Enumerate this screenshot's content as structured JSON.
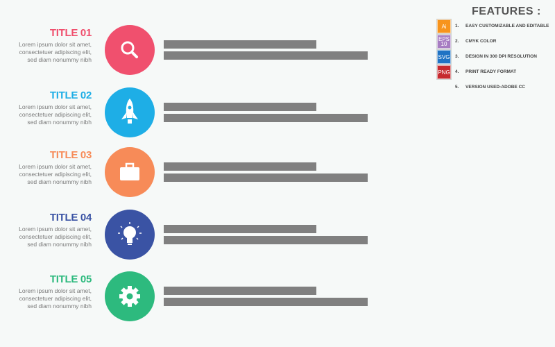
{
  "colors": {
    "bar": "#808080"
  },
  "items": [
    {
      "title": "TITLE 01",
      "text": "Lorem ipsum dolor sit amet, consectetuer adipiscing elit, sed diam nonummy nibh",
      "color": "#f0506e",
      "icon": "search-icon"
    },
    {
      "title": "TITLE 02",
      "text": "Lorem ipsum dolor sit amet, consectetuer adipiscing elit, sed diam nonummy nibh",
      "color": "#1eaee6",
      "icon": "rocket-icon"
    },
    {
      "title": "TITLE 03",
      "text": "Lorem ipsum dolor sit amet, consectetuer adipiscing elit, sed diam nonummy nibh",
      "color": "#f78b58",
      "icon": "briefcase-icon"
    },
    {
      "title": "TITLE 04",
      "text": "Lorem ipsum dolor sit amet, consectetuer adipiscing elit, sed diam nonummy nibh",
      "color": "#3a53a4",
      "icon": "lightbulb-icon"
    },
    {
      "title": "TITLE 05",
      "text": "Lorem ipsum dolor sit amet, consectetuer adipiscing elit, sed diam nonummy nibh",
      "color": "#2dba7e",
      "icon": "gear-icon"
    }
  ],
  "features": {
    "heading": "FEATURES :",
    "list": [
      {
        "badge": "Ai",
        "num": "1.",
        "text": "EASY CUSTOMIZABLE AND EDITABLE",
        "color": "#f7941d"
      },
      {
        "badge": "EPS 10",
        "num": "2.",
        "text": "CMYK COLOR",
        "color": "#a77dc2"
      },
      {
        "badge": "SVG",
        "num": "3.",
        "text": "DESIGN IN 300 DPI RESOLUTION",
        "color": "#1f73c4"
      },
      {
        "badge": "PNG",
        "num": "4.",
        "text": "PRINT READY FORMAT",
        "color": "#c62a2f"
      },
      {
        "badge": "",
        "num": "5.",
        "text": "VERSION USED-ADOBE CC",
        "color": ""
      }
    ]
  }
}
